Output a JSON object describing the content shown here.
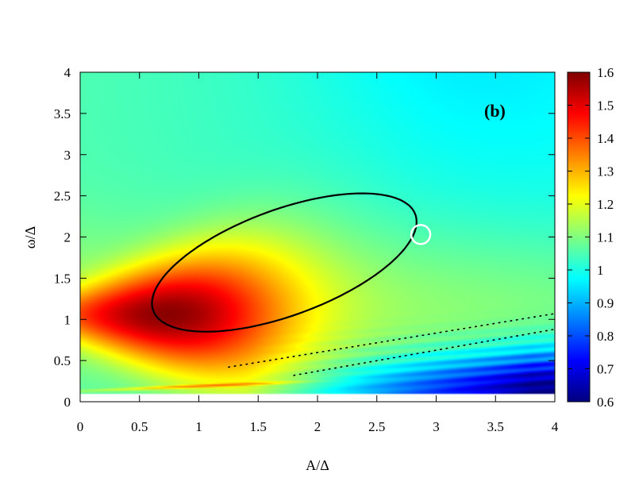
{
  "chart_data": {
    "type": "heatmap",
    "panel_label": "(b)",
    "xlabel": "A/Δ",
    "ylabel": "ω/Δ",
    "xlim": [
      0,
      4
    ],
    "ylim": [
      0,
      4
    ],
    "x_ticks": [
      "0",
      "0.5",
      "1",
      "1.5",
      "2",
      "2.5",
      "3",
      "3.5",
      "4"
    ],
    "y_ticks": [
      "0",
      "0.5",
      "1",
      "1.5",
      "2",
      "2.5",
      "3",
      "3.5",
      "4"
    ],
    "colorbar": {
      "range": [
        0.6,
        1.6
      ],
      "ticks": [
        "0.6",
        "0.7",
        "0.8",
        "0.9",
        "1",
        "1.1",
        "1.2",
        "1.3",
        "1.4",
        "1.5",
        "1.6"
      ],
      "colormap": "jet"
    },
    "data_floor_y": 0.1,
    "peak": {
      "x": 0.75,
      "y": 1.05,
      "value": 1.55
    },
    "boundary_ellipse": {
      "center": [
        1.72,
        1.69
      ],
      "semi_axes": [
        1.26,
        0.6
      ],
      "tilt_deg": 32
    },
    "marked_point": {
      "x": 2.87,
      "y": 2.03
    },
    "dotted_lines": [
      {
        "x": [
          1.25,
          4.0
        ],
        "y": [
          0.42,
          1.07
        ]
      },
      {
        "x": [
          1.8,
          4.0
        ],
        "y": [
          0.32,
          0.88
        ]
      }
    ],
    "colors": {
      "boundary": "#000000",
      "marker": "#ffffff"
    }
  }
}
